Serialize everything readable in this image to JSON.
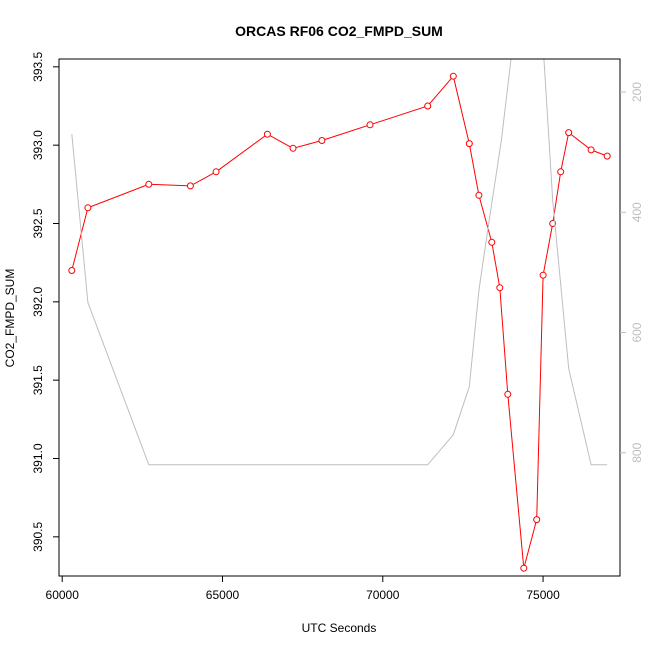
{
  "chart_data": {
    "type": "line",
    "title": "ORCAS RF06 CO2_FMPD_SUM",
    "xlabel": "UTC Seconds",
    "ylabel": "CO2_FMPD_SUM",
    "xlim": [
      59900,
      77400
    ],
    "ylim": [
      390.25,
      393.55
    ],
    "x_ticks": [
      60000,
      65000,
      70000,
      75000
    ],
    "y_ticks": [
      390.5,
      391.0,
      391.5,
      392.0,
      392.5,
      393.0,
      393.5
    ],
    "y2_ticks": [
      200,
      400,
      600,
      800
    ],
    "y2lim": [
      1005,
      145
    ],
    "grid": false,
    "legend": "none",
    "series": [
      {
        "axis": "left",
        "color": "#ff0000",
        "style": "line+open-circle",
        "x": [
          60300,
          60800,
          62700,
          64000,
          64800,
          66400,
          67200,
          68100,
          69600,
          71400,
          72200,
          72700,
          73000,
          73400,
          73650,
          73900,
          74400,
          74800,
          75000,
          75300,
          75550,
          75800,
          76500,
          77000
        ],
        "y": [
          392.2,
          392.6,
          392.75,
          392.74,
          392.83,
          393.07,
          392.98,
          393.03,
          393.13,
          393.25,
          393.44,
          393.01,
          392.68,
          392.38,
          392.09,
          391.41,
          390.3,
          390.61,
          392.17,
          392.5,
          392.83,
          393.08,
          392.97,
          392.93
        ]
      },
      {
        "axis": "right",
        "color": "#bebebe",
        "style": "line",
        "x": [
          60300,
          60800,
          62700,
          71400,
          72200,
          72700,
          73000,
          73300,
          73700,
          74100,
          74500,
          74750,
          74950,
          75300,
          75800,
          76500,
          77000
        ],
        "y": [
          270,
          550,
          820,
          820,
          770,
          690,
          530,
          420,
          280,
          100,
          100,
          10,
          80,
          380,
          660,
          820,
          820
        ]
      }
    ]
  }
}
